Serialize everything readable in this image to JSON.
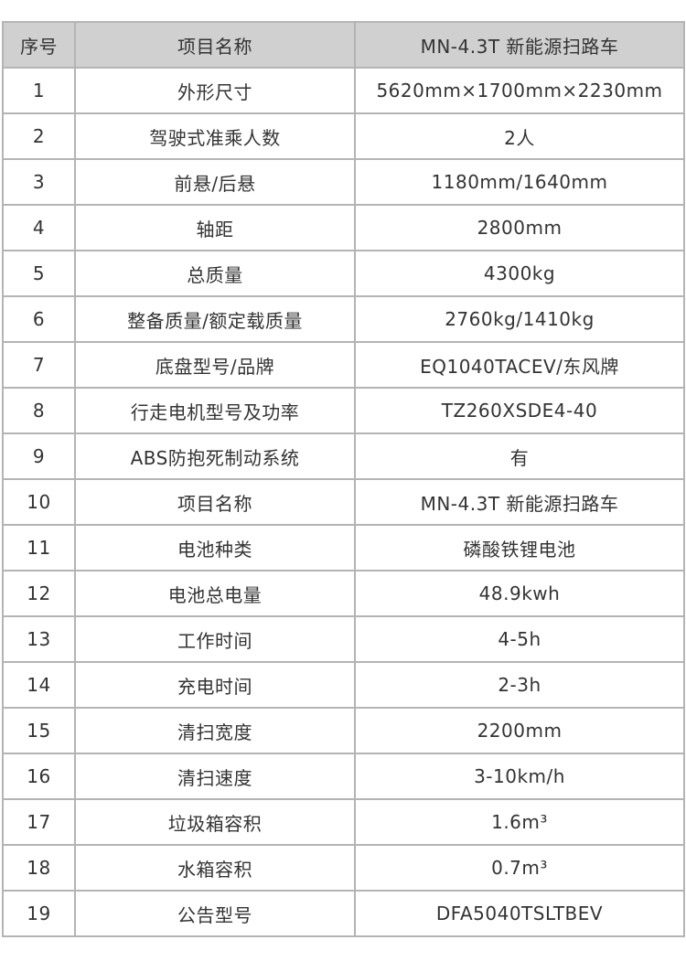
{
  "header": {
    "index": "序号",
    "name": "项目名称",
    "value": "MN-4.3T 新能源扫路车"
  },
  "rows": [
    {
      "index": "1",
      "name": "外形尺寸",
      "value": "5620mm×1700mm×2230mm"
    },
    {
      "index": "2",
      "name": "驾驶式准乘人数",
      "value": "2人"
    },
    {
      "index": "3",
      "name": "前悬/后悬",
      "value": "1180mm/1640mm"
    },
    {
      "index": "4",
      "name": "轴距",
      "value": "2800mm"
    },
    {
      "index": "5",
      "name": "总质量",
      "value": "4300kg"
    },
    {
      "index": "6",
      "name": "整备质量/额定载质量",
      "value": "2760kg/1410kg"
    },
    {
      "index": "7",
      "name": "底盘型号/品牌",
      "value": "EQ1040TACEV/东风牌"
    },
    {
      "index": "8",
      "name": "行走电机型号及功率",
      "value": "TZ260XSDE4-40"
    },
    {
      "index": "9",
      "name": "ABS防抱死制动系统",
      "value": "有"
    },
    {
      "index": "10",
      "name": "项目名称",
      "value": "MN-4.3T 新能源扫路车"
    },
    {
      "index": "11",
      "name": "电池种类",
      "value": "磷酸铁锂电池"
    },
    {
      "index": "12",
      "name": "电池总电量",
      "value": "48.9kwh"
    },
    {
      "index": "13",
      "name": "工作时间",
      "value": "4-5h"
    },
    {
      "index": "14",
      "name": "充电时间",
      "value": "2-3h"
    },
    {
      "index": "15",
      "name": "清扫宽度",
      "value": "2200mm"
    },
    {
      "index": "16",
      "name": "清扫速度",
      "value": "3-10km/h"
    },
    {
      "index": "17",
      "name": "垃圾箱容积",
      "value": "1.6m³"
    },
    {
      "index": "18",
      "name": "水箱容积",
      "value": "0.7m³"
    },
    {
      "index": "19",
      "name": "公告型号",
      "value": "DFA5040TSLTBEV"
    }
  ]
}
